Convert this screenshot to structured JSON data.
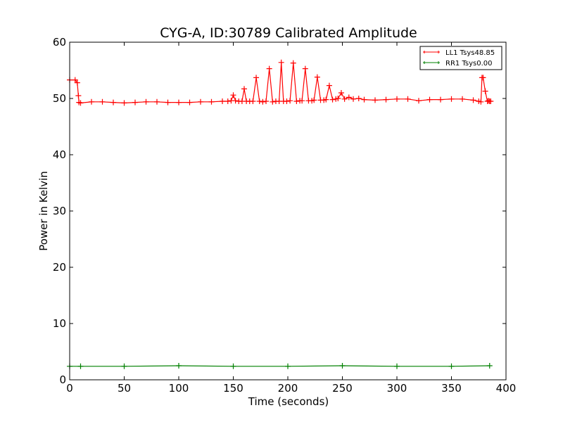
{
  "chart_data": {
    "type": "line",
    "title": "CYG-A, ID:30789 Calibrated Amplitude",
    "xlabel": "Time (seconds)",
    "ylabel": "Power in Kelvin",
    "xlim": [
      0,
      400
    ],
    "ylim": [
      0,
      60
    ],
    "xticks": [
      0,
      50,
      100,
      150,
      200,
      250,
      300,
      350,
      400
    ],
    "yticks": [
      0,
      10,
      20,
      30,
      40,
      50,
      60
    ],
    "grid": false,
    "legend_position": "top-right",
    "series": [
      {
        "name": "LL1 Tsys48.85",
        "color": "#ff0000",
        "marker": "+",
        "x": [
          0,
          5,
          7,
          8,
          8.5,
          10,
          20,
          30,
          40,
          50,
          60,
          70,
          80,
          90,
          100,
          110,
          120,
          130,
          140,
          145,
          148,
          150,
          152,
          155,
          158,
          160,
          162,
          165,
          168,
          171,
          174,
          177,
          180,
          183,
          186,
          189,
          192,
          194,
          196,
          199,
          202,
          205,
          208,
          211,
          213,
          216,
          219,
          222,
          224,
          227,
          230,
          233,
          235,
          238,
          241,
          244,
          246,
          249,
          252,
          256,
          260,
          265,
          270,
          280,
          290,
          300,
          310,
          320,
          330,
          340,
          350,
          360,
          370,
          375,
          377,
          378,
          379,
          381,
          383,
          384,
          385,
          386
        ],
        "values": [
          53.3,
          53.3,
          52.8,
          50.5,
          49.3,
          49.2,
          49.4,
          49.4,
          49.3,
          49.2,
          49.3,
          49.4,
          49.4,
          49.3,
          49.3,
          49.3,
          49.4,
          49.4,
          49.5,
          49.5,
          49.6,
          50.6,
          49.6,
          49.5,
          49.5,
          51.7,
          49.5,
          49.5,
          49.5,
          53.7,
          49.5,
          49.4,
          49.5,
          55.3,
          49.4,
          49.5,
          49.5,
          56.4,
          49.5,
          49.5,
          49.6,
          56.3,
          49.5,
          49.6,
          49.6,
          55.3,
          49.6,
          49.6,
          49.7,
          53.8,
          49.7,
          49.7,
          49.8,
          52.3,
          49.8,
          49.9,
          50.0,
          51.0,
          49.9,
          50.2,
          49.9,
          50.0,
          49.8,
          49.7,
          49.8,
          49.9,
          49.9,
          49.6,
          49.8,
          49.8,
          49.9,
          49.9,
          49.7,
          49.5,
          49.4,
          53.7,
          53.7,
          51.3,
          49.5,
          49.6,
          49.5,
          49.5
        ]
      },
      {
        "name": "RR1 Tsys0.00",
        "color": "#008000",
        "marker": "+",
        "x": [
          0,
          10,
          50,
          100,
          150,
          200,
          250,
          300,
          350,
          385
        ],
        "values": [
          2.4,
          2.4,
          2.4,
          2.5,
          2.4,
          2.4,
          2.5,
          2.4,
          2.4,
          2.5
        ]
      }
    ]
  }
}
